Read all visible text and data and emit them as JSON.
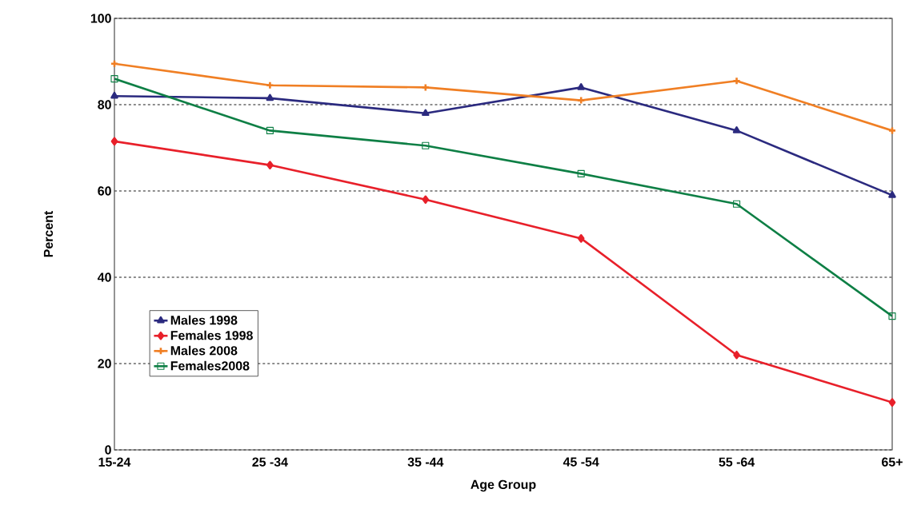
{
  "chart_data": {
    "type": "line",
    "xlabel": "Age Group",
    "ylabel": "Percent",
    "categories": [
      "15-24",
      "25 -34",
      "35 -44",
      "45 -54",
      "55 -64",
      "65+"
    ],
    "series": [
      {
        "name": "Males 1998",
        "color": "#2b2a7f",
        "marker": "triangle",
        "values": [
          82,
          81.5,
          78,
          84,
          74,
          59
        ]
      },
      {
        "name": "Females 1998",
        "color": "#e8202a",
        "marker": "diamond",
        "values": [
          71.5,
          66,
          58,
          49,
          22,
          11
        ]
      },
      {
        "name": "Males 2008",
        "color": "#f07f24",
        "marker": "cross",
        "values": [
          89.5,
          84.5,
          84,
          81,
          85.5,
          74
        ]
      },
      {
        "name": "Females2008",
        "color": "#0e7f45",
        "marker": "square",
        "values": [
          86,
          74,
          70.5,
          64,
          57,
          31
        ]
      }
    ],
    "ylim": [
      0,
      100
    ],
    "yticks": [
      0,
      20,
      40,
      60,
      80,
      100
    ],
    "grid": "y",
    "legend": "bottom left",
    "line_style": "solid"
  }
}
